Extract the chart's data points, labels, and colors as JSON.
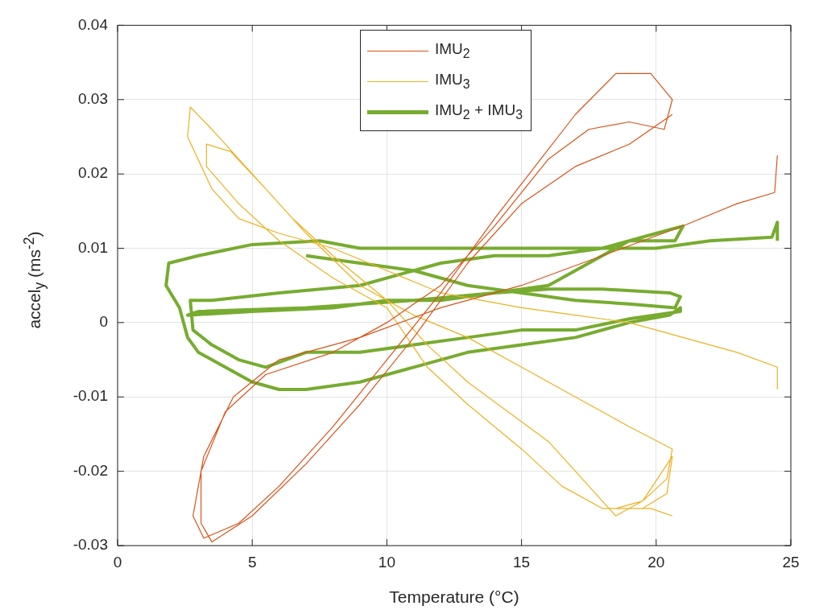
{
  "chart_data": {
    "type": "line",
    "xlabel": "Temperature (°C)",
    "ylabel": "accel$_{y}$ (ms$^{-2}$)",
    "xlim": [
      0,
      25
    ],
    "xticks": [
      0,
      5,
      10,
      15,
      20,
      25
    ],
    "ylim": [
      -0.03,
      0.04
    ],
    "yticks": [
      -0.03,
      -0.02,
      -0.01,
      0,
      0.01,
      0.02,
      0.03,
      0.04
    ],
    "grid": true,
    "legend": "top",
    "line_style": "solid",
    "series": [
      {
        "name": "IMU$_{2}$",
        "color": "#d95319",
        "x": [
          24.5,
          24.4,
          23,
          21,
          18,
          15,
          12,
          9,
          6,
          4.3,
          3.2,
          2.8,
          3.2,
          4.5,
          6,
          8,
          10,
          12,
          14,
          15.5,
          17,
          18.5,
          19.8,
          20.6,
          20.3,
          19,
          17.5,
          16,
          14,
          12,
          10,
          8,
          5.5,
          4,
          3.1,
          3.1,
          3.5,
          5,
          7,
          9,
          11,
          13,
          15,
          17,
          19,
          20.6
        ],
        "values": [
          0.0225,
          0.0175,
          0.016,
          0.013,
          0.009,
          0.005,
          0.002,
          -0.002,
          -0.005,
          -0.01,
          -0.018,
          -0.026,
          -0.029,
          -0.027,
          -0.022,
          -0.014,
          -0.005,
          0.004,
          0.014,
          0.021,
          0.028,
          0.0335,
          0.0335,
          0.03,
          0.026,
          0.027,
          0.026,
          0.022,
          0.013,
          0.005,
          0,
          -0.004,
          -0.007,
          -0.012,
          -0.02,
          -0.027,
          -0.0295,
          -0.026,
          -0.019,
          -0.011,
          -0.002,
          0.008,
          0.016,
          0.021,
          0.024,
          0.028
        ]
      },
      {
        "name": "IMU$_{3}$",
        "color": "#edb120",
        "x": [
          24.5,
          24.5,
          23,
          21,
          19,
          17,
          15,
          12,
          10,
          8,
          6,
          4.5,
          3.5,
          2.6,
          2.7,
          3.5,
          5,
          6.5,
          8,
          10,
          11.5,
          13,
          14.5,
          16,
          17.5,
          18.5,
          19.5,
          20.6,
          20.4,
          19.5,
          18,
          16.5,
          15,
          13,
          11.5,
          10,
          8,
          6,
          4.5,
          3.3,
          3.3,
          4.2,
          5.5,
          7,
          9,
          11,
          13,
          15,
          17,
          19,
          20.6,
          20.4,
          19.5,
          18.5,
          19.8,
          20.6
        ],
        "values": [
          -0.009,
          -0.006,
          -0.004,
          -0.002,
          0,
          0.001,
          0.002,
          0.004,
          0.007,
          0.01,
          0.012,
          0.014,
          0.018,
          0.025,
          0.029,
          0.026,
          0.02,
          0.014,
          0.009,
          0.003,
          -0.003,
          -0.008,
          -0.012,
          -0.016,
          -0.022,
          -0.026,
          -0.024,
          -0.018,
          -0.023,
          -0.025,
          -0.025,
          -0.022,
          -0.017,
          -0.011,
          -0.006,
          0.002,
          0.006,
          0.011,
          0.016,
          0.021,
          0.024,
          0.023,
          0.018,
          0.012,
          0.005,
          0.001,
          -0.002,
          -0.006,
          -0.01,
          -0.014,
          -0.017,
          -0.021,
          -0.024,
          -0.025,
          -0.025,
          -0.026
        ]
      },
      {
        "name": "IMU$_{2}$ + IMU$_{3}$",
        "color": "#77ac30",
        "x": [
          24.5,
          24.5,
          24.3,
          22,
          20,
          18,
          16,
          13,
          11,
          9,
          7.5,
          5,
          3,
          1.9,
          1.8,
          2.3,
          2.6,
          3,
          4,
          5,
          6,
          7,
          9,
          11,
          13,
          15,
          17,
          19,
          20.5,
          20.9,
          20.9,
          19,
          17,
          15,
          13,
          11,
          9,
          7,
          5.5,
          4.5,
          3.5,
          2.8,
          2.7,
          3.5,
          6,
          9,
          12,
          14,
          16,
          18,
          20,
          21,
          20.7,
          19,
          18,
          17,
          16,
          14,
          12,
          10,
          8,
          5,
          2.6,
          3,
          7,
          11,
          14,
          16,
          18,
          20.5,
          20.9,
          20.7,
          19,
          17,
          15,
          13,
          11,
          9,
          7
        ],
        "values": [
          0.011,
          0.0135,
          0.0115,
          0.011,
          0.01,
          0.01,
          0.01,
          0.01,
          0.01,
          0.01,
          0.011,
          0.0105,
          0.009,
          0.008,
          0.005,
          0.002,
          -0.002,
          -0.004,
          -0.006,
          -0.008,
          -0.009,
          -0.009,
          -0.008,
          -0.006,
          -0.004,
          -0.003,
          -0.002,
          0,
          0.001,
          0.002,
          0.0015,
          0.0005,
          -0.001,
          -0.001,
          -0.002,
          -0.003,
          -0.004,
          -0.004,
          -0.006,
          -0.005,
          -0.003,
          -0.001,
          0.003,
          0.003,
          0.004,
          0.005,
          0.008,
          0.009,
          0.009,
          0.01,
          0.012,
          0.013,
          0.011,
          0.011,
          0.009,
          0.007,
          0.005,
          0.004,
          0.003,
          0.003,
          0.002,
          0.0015,
          0.001,
          0.0015,
          0.002,
          0.003,
          0.004,
          0.0045,
          0.0045,
          0.004,
          0.0035,
          0.002,
          0.0025,
          0.003,
          0.004,
          0.005,
          0.007,
          0.008,
          0.009
        ]
      }
    ]
  }
}
